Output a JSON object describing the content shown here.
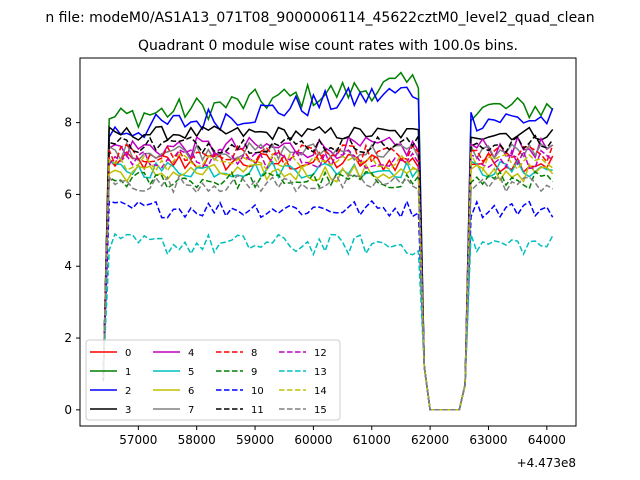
{
  "suptitle": "n file: modeM0/AS1A13_071T08_9000006114_45622cztM0_level2_quad_clean",
  "chart_data": {
    "type": "line",
    "title": "Quadrant 0 module wise count rates with 100.0s bins.",
    "xlabel": "",
    "ylabel": "",
    "x_offset_label": "+4.473e8",
    "x_offset": 447300000,
    "xlim": [
      56000,
      64500
    ],
    "ylim": [
      -0.45,
      9.8
    ],
    "xticks": [
      57000,
      58000,
      59000,
      60000,
      61000,
      62000,
      63000,
      64000
    ],
    "yticks": [
      0,
      2,
      4,
      6,
      8
    ],
    "grid": false,
    "legend_position": "lower-left",
    "segments": [
      {
        "x_start": 56400,
        "x_end": 61800,
        "step": 100
      },
      {
        "x_start": 61900,
        "x_end": 62500,
        "step": 100
      },
      {
        "x_start": 62600,
        "x_end": 64100,
        "step": 100
      }
    ],
    "series": [
      {
        "name": "0",
        "color": "#ff0000",
        "dash": "solid",
        "level": 6.9,
        "noise": 0.28
      },
      {
        "name": "1",
        "color": "#008000",
        "dash": "solid",
        "level": 8.6,
        "noise": 0.35
      },
      {
        "name": "2",
        "color": "#0000ff",
        "dash": "solid",
        "level": 8.2,
        "noise": 0.35
      },
      {
        "name": "3",
        "color": "#000000",
        "dash": "solid",
        "level": 7.7,
        "noise": 0.2
      },
      {
        "name": "4",
        "color": "#bf00bf",
        "dash": "solid",
        "level": 7.3,
        "noise": 0.3
      },
      {
        "name": "5",
        "color": "#00bfbf",
        "dash": "solid",
        "level": 6.7,
        "noise": 0.25
      },
      {
        "name": "6",
        "color": "#bfbf00",
        "dash": "solid",
        "level": 6.6,
        "noise": 0.25
      },
      {
        "name": "7",
        "color": "#808080",
        "dash": "solid",
        "level": 7.2,
        "noise": 0.25
      },
      {
        "name": "8",
        "color": "#ff0000",
        "dash": "dashed",
        "level": 7.1,
        "noise": 0.28
      },
      {
        "name": "9",
        "color": "#008000",
        "dash": "dashed",
        "level": 6.4,
        "noise": 0.25
      },
      {
        "name": "10",
        "color": "#0000ff",
        "dash": "dashed",
        "level": 5.6,
        "noise": 0.25
      },
      {
        "name": "11",
        "color": "#000000",
        "dash": "dashed",
        "level": 7.4,
        "noise": 0.25
      },
      {
        "name": "12",
        "color": "#bf00bf",
        "dash": "dashed",
        "level": 7.0,
        "noise": 0.28
      },
      {
        "name": "13",
        "color": "#00bfbf",
        "dash": "dashed",
        "level": 4.6,
        "noise": 0.3
      },
      {
        "name": "14",
        "color": "#bfbf00",
        "dash": "dashed",
        "level": 6.9,
        "noise": 0.25
      },
      {
        "name": "15",
        "color": "#808080",
        "dash": "dashed",
        "level": 6.3,
        "noise": 0.25
      }
    ]
  }
}
